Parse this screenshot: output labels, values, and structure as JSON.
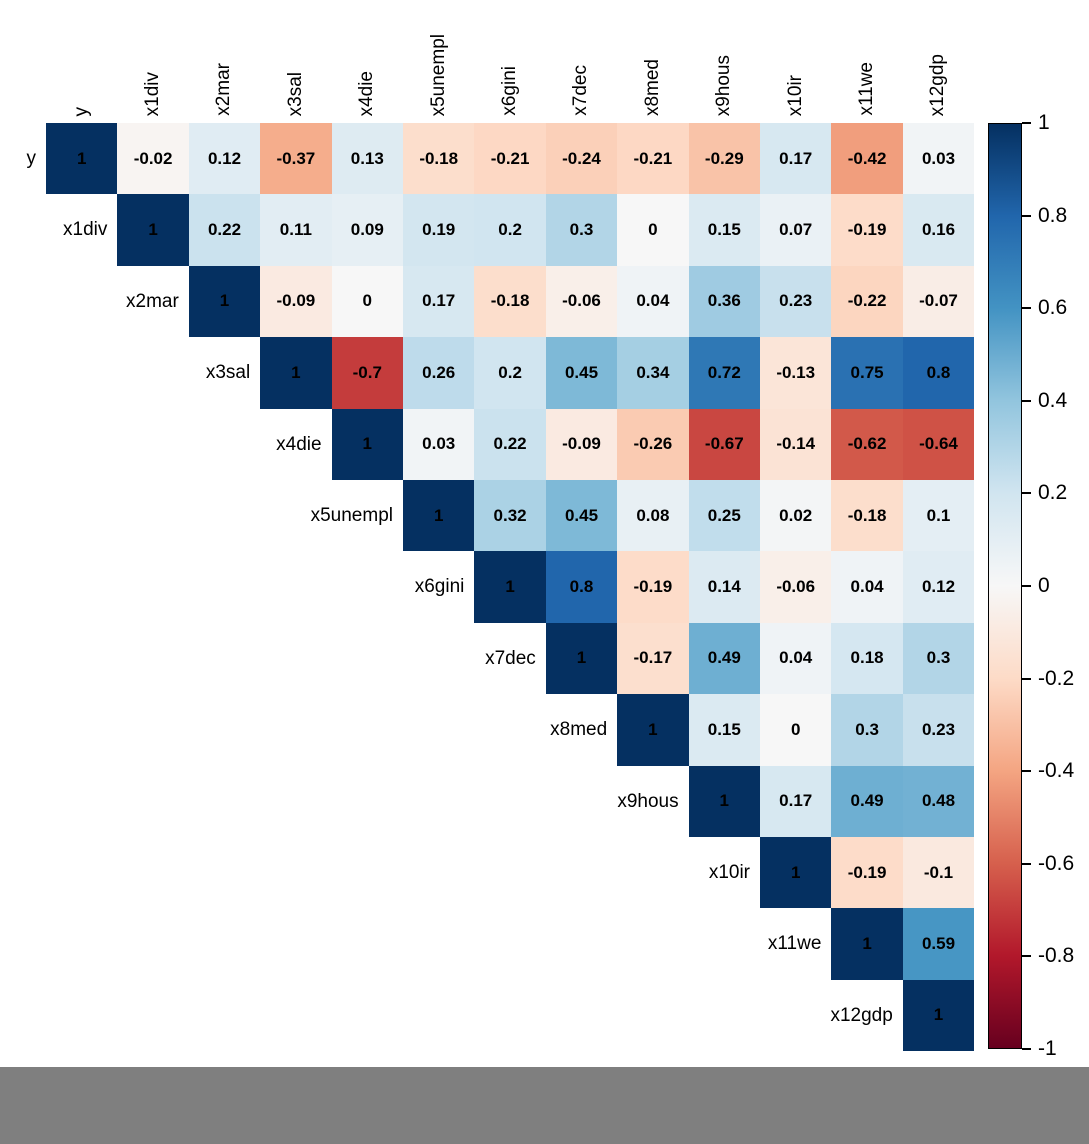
{
  "chart_data": {
    "type": "heatmap",
    "subtype": "correlation-matrix-upper-triangle",
    "title": "",
    "variables": [
      "y",
      "x1div",
      "x2mar",
      "x3sal",
      "x4die",
      "x5unempl",
      "x6gini",
      "x7dec",
      "x8med",
      "x9hous",
      "x10ir",
      "x11we",
      "x12gdp"
    ],
    "matrix_upper_triangle": [
      [
        1,
        -0.02,
        0.12,
        -0.37,
        0.13,
        -0.18,
        -0.21,
        -0.24,
        -0.21,
        -0.29,
        0.17,
        -0.42,
        0.03
      ],
      [
        1,
        0.22,
        0.11,
        0.09,
        0.19,
        0.2,
        0.3,
        0,
        0.15,
        0.07,
        -0.19,
        0.16
      ],
      [
        1,
        -0.09,
        0,
        0.17,
        -0.18,
        -0.06,
        0.04,
        0.36,
        0.23,
        -0.22,
        -0.07
      ],
      [
        1,
        -0.7,
        0.26,
        0.2,
        0.45,
        0.34,
        0.72,
        -0.13,
        0.75,
        0.8
      ],
      [
        1,
        0.03,
        0.22,
        -0.09,
        -0.26,
        -0.67,
        -0.14,
        -0.62,
        -0.64
      ],
      [
        1,
        0.32,
        0.45,
        0.08,
        0.25,
        0.02,
        -0.18,
        0.1
      ],
      [
        1,
        0.8,
        -0.19,
        0.14,
        -0.06,
        0.04,
        0.12
      ],
      [
        1,
        -0.17,
        0.49,
        0.04,
        0.18,
        0.3
      ],
      [
        1,
        0.15,
        0,
        0.3,
        0.23
      ],
      [
        1,
        0.17,
        0.49,
        0.48
      ],
      [
        1,
        -0.19,
        -0.1
      ],
      [
        1,
        0.59
      ],
      [
        1
      ]
    ],
    "value_range": [
      -1,
      1
    ],
    "legend_position": "right",
    "colorbar": {
      "tick_labels": [
        "1",
        "0.8",
        "0.6",
        "0.4",
        "0.2",
        "0",
        "-0.2",
        "-0.4",
        "-0.6",
        "-0.8",
        "-1"
      ],
      "min": -1,
      "max": 1,
      "palette_rdbu_low_to_high": [
        "#67001F",
        "#B2182B",
        "#D6604D",
        "#F4A582",
        "#FDDBC7",
        "#F7F7F7",
        "#D1E5F0",
        "#92C5DE",
        "#4393C3",
        "#2166AC",
        "#053061"
      ]
    },
    "value_text_color": "#000000",
    "label_text_color": "#000000",
    "footer_bar_color": "#7f7f7f"
  }
}
